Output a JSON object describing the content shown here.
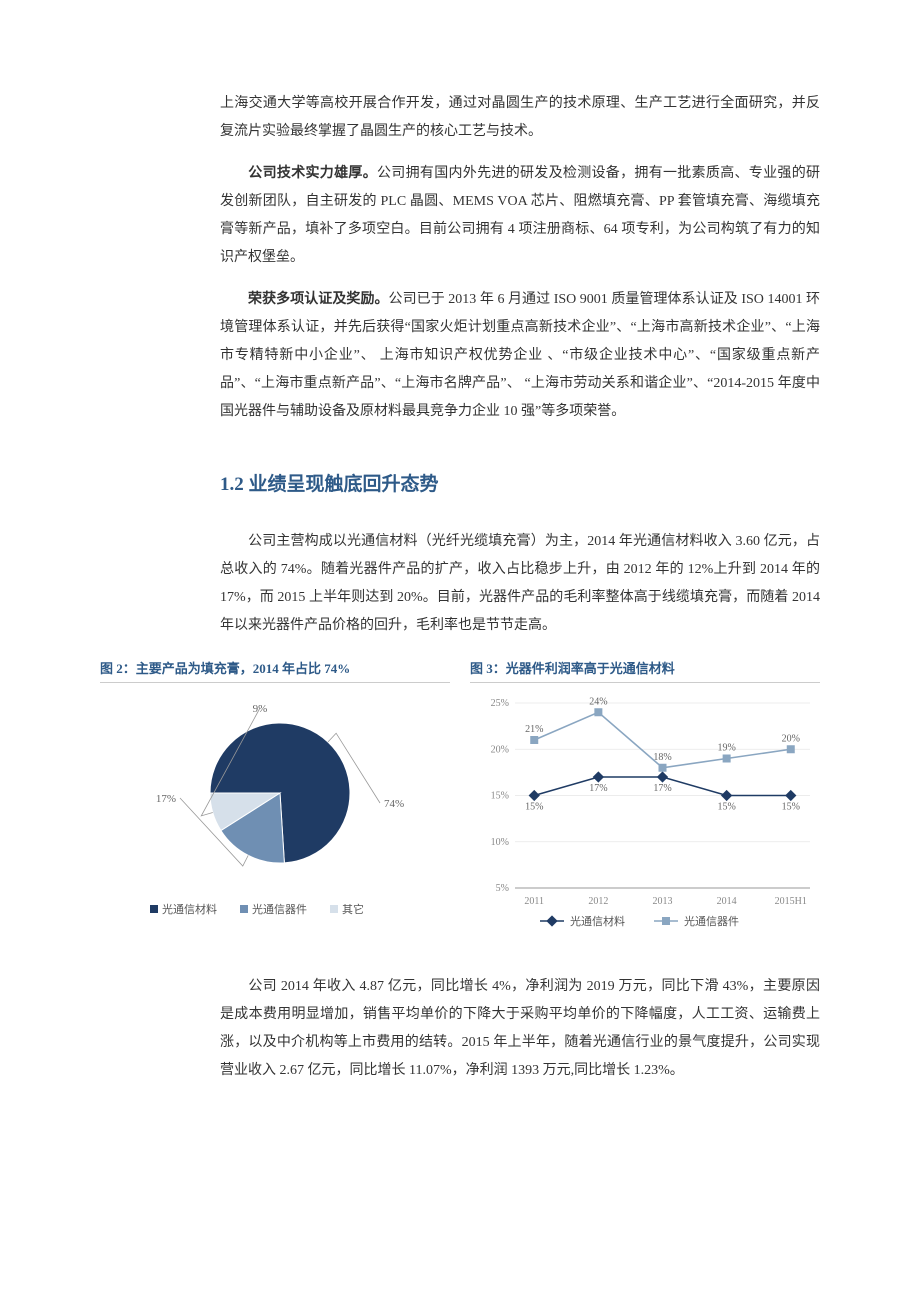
{
  "paragraphs": {
    "p1": "上海交通大学等高校开展合作开发，通过对晶圆生产的技术原理、生产工艺进行全面研究，并反复流片实验最终掌握了晶圆生产的核心工艺与技术。",
    "p2_bold": "公司技术实力雄厚。",
    "p2_rest": "公司拥有国内外先进的研发及检测设备，拥有一批素质高、专业强的研发创新团队，自主研发的 PLC 晶圆、MEMS VOA 芯片、阻燃填充膏、PP 套管填充膏、海缆填充膏等新产品，填补了多项空白。目前公司拥有 4 项注册商标、64 项专利，为公司构筑了有力的知识产权堡垒。",
    "p3_bold": "荣获多项认证及奖励。",
    "p3_rest": "公司已于 2013 年 6 月通过 ISO 9001 质量管理体系认证及 ISO 14001 环境管理体系认证，并先后获得“国家火炬计划重点高新技术企业”、“上海市高新技术企业”、“上海市专精特新中小企业”、 上海市知识产权优势企业 、“市级企业技术中心”、“国家级重点新产品”、“上海市重点新产品”、“上海市名牌产品”、 “上海市劳动关系和谐企业”、“2014-2015 年度中国光器件与辅助设备及原材料最具竞争力企业 10 强”等多项荣誉。",
    "p4": "公司主营构成以光通信材料（光纤光缆填充膏）为主，2014 年光通信材料收入 3.60 亿元，占总收入的 74%。随着光器件产品的扩产，收入占比稳步上升，由 2012 年的 12%上升到 2014 年的 17%，而 2015 上半年则达到 20%。目前，光器件产品的毛利率整体高于线缆填充膏，而随着 2014 年以来光器件产品价格的回升，毛利率也是节节走高。",
    "p5": "公司 2014 年收入 4.87 亿元，同比增长 4%，净利润为 2019 万元，同比下滑 43%，主要原因是成本费用明显增加，销售平均单价的下降大于采购平均单价的下降幅度，人工工资、运输费上涨，以及中介机构等上市费用的结转。2015 年上半年，随着光通信行业的景气度提升，公司实现营业收入 2.67 亿元，同比增长 11.07%，净利润 1393 万元,同比增长 1.23%。"
  },
  "section_heading": "1.2  业绩呈现触底回升态势",
  "figure2": {
    "title": "图 2：主要产品为填充膏，2014 年占比 74%",
    "type": "pie",
    "slices": [
      {
        "label": "光通信材料",
        "value": 74,
        "color": "#1f3b64"
      },
      {
        "label": "光通信器件",
        "value": 17,
        "color": "#6f8fb3"
      },
      {
        "label": "其它",
        "value": 9,
        "color": "#d6e0ea"
      }
    ],
    "value_fontsize": 11,
    "value_color": "#666666",
    "leader_color": "#999999",
    "legend_square_size": 8,
    "legend_fontsize": 11,
    "legend_color": "#555555",
    "background_color": "#ffffff"
  },
  "figure3": {
    "title": "图 3：光器件利润率高于光通信材料",
    "type": "line",
    "x_categories": [
      "2011",
      "2012",
      "2013",
      "2014",
      "2015H1"
    ],
    "ylim": [
      5,
      25
    ],
    "ytick_step": 5,
    "ytick_format": "%",
    "series": [
      {
        "name": "光通信材料",
        "color": "#1f3b64",
        "marker": "diamond",
        "values": [
          15,
          17,
          17,
          15,
          15
        ],
        "point_labels": [
          "15%",
          "17%",
          "17%",
          "15%",
          "15%"
        ]
      },
      {
        "name": "光通信器件",
        "color": "#8aa6c1",
        "marker": "square",
        "values": [
          21,
          24,
          18,
          19,
          20
        ],
        "point_labels": [
          "21%",
          "24%",
          "18%",
          "19%",
          "20%"
        ]
      }
    ],
    "axis_color": "#999999",
    "grid_color": "#e6e6e6",
    "label_fontsize": 10,
    "label_color": "#888888",
    "point_label_fontsize": 10,
    "point_label_color": "#666666",
    "line_width": 1.6,
    "marker_size": 4,
    "legend_fontsize": 11,
    "legend_color": "#555555",
    "background_color": "#ffffff"
  }
}
